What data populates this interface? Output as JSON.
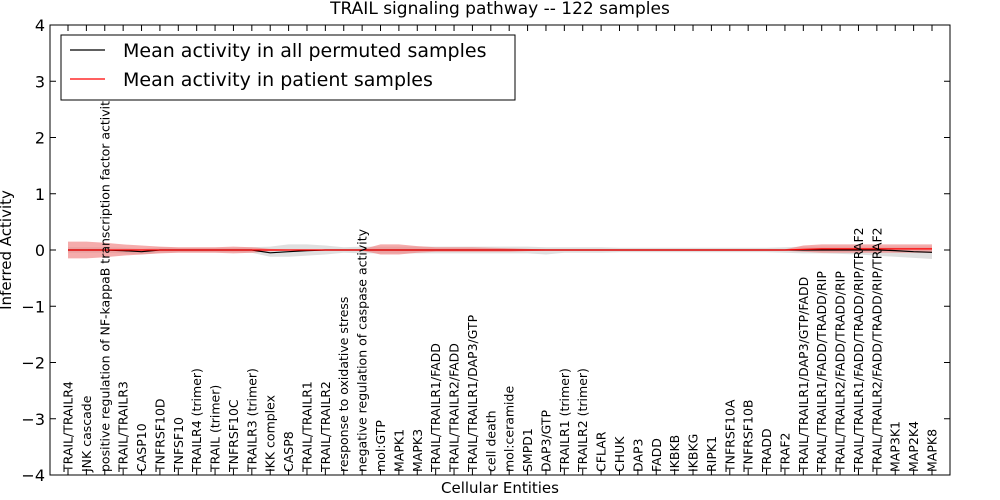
{
  "chart_data": {
    "type": "line",
    "title": "TRAIL signaling pathway -- 122 samples",
    "xlabel": "Cellular Entities",
    "ylabel": "Inferred Activity",
    "ylim": [
      -4,
      4
    ],
    "yticks": [
      "4",
      "3",
      "2",
      "1",
      "0",
      "−1",
      "−2",
      "−3",
      "−4"
    ],
    "grid": false,
    "legend_position": "top-left",
    "categories": [
      "TRAIL/TRAILR4",
      "JNK cascade",
      "positive regulation of NF-kappaB transcription factor activity",
      "TRAIL/TRAILR3",
      "CASP10",
      "TNFRSF10D",
      "TNFSF10",
      "TRAILR4 (trimer)",
      "TRAIL (trimer)",
      "TNFRSF10C",
      "TRAILR3 (trimer)",
      "IKK complex",
      "CASP8",
      "TRAIL/TRAILR1",
      "TRAIL/TRAILR2",
      "response to oxidative stress",
      "negative regulation of caspase activity",
      "mol:GTP",
      "MAPK1",
      "MAPK3",
      "TRAIL/TRAILR1/FADD",
      "TRAIL/TRAILR2/FADD",
      "TRAIL/TRAILR1/DAP3/GTP",
      "cell death",
      "mol:ceramide",
      "SMPD1",
      "DAP3/GTP",
      "TRAILR1 (trimer)",
      "TRAILR2 (trimer)",
      "CFLAR",
      "CHUK",
      "DAP3",
      "FADD",
      "IKBKB",
      "IKBKG",
      "RIPK1",
      "TNFRSF10A",
      "TNFRSF10B",
      "TRADD",
      "TRAF2",
      "TRAIL/TRAILR1/DAP3/GTP/FADD",
      "TRAIL/TRAILR1/FADD/TRADD/RIP",
      "TRAIL/TRAILR2/FADD/TRADD/RIP",
      "TRAIL/TRAILR1/FADD/TRADD/RIP/TRAF2",
      "TRAIL/TRAILR2/FADD/TRADD/RIP/TRAF2",
      "MAP3K1",
      "MAP2K4",
      "MAPK8"
    ],
    "series": [
      {
        "name": "Mean activity in all permuted samples",
        "color": "#000000",
        "band_color": "#bfbfbf",
        "values": [
          0,
          0,
          0,
          -0.01,
          -0.03,
          0,
          0,
          0,
          0,
          0,
          0,
          -0.05,
          -0.03,
          -0.01,
          0,
          0,
          0,
          0,
          0,
          0,
          0,
          0,
          0,
          0,
          0,
          0,
          0,
          0,
          0,
          0,
          0,
          0,
          0,
          0,
          0,
          0,
          0,
          0,
          0,
          0,
          0,
          0,
          0,
          0,
          0,
          -0.01,
          -0.03,
          -0.04
        ],
        "lower": [
          -0.05,
          -0.05,
          -0.05,
          -0.06,
          -0.08,
          -0.05,
          -0.04,
          -0.04,
          -0.04,
          -0.04,
          -0.05,
          -0.12,
          -0.12,
          -0.1,
          -0.08,
          -0.05,
          -0.06,
          -0.06,
          -0.06,
          -0.06,
          -0.06,
          -0.06,
          -0.06,
          -0.06,
          -0.06,
          -0.06,
          -0.08,
          -0.05,
          -0.05,
          -0.05,
          -0.04,
          -0.04,
          -0.04,
          -0.04,
          -0.04,
          -0.04,
          -0.04,
          -0.04,
          -0.04,
          -0.05,
          -0.06,
          -0.06,
          -0.07,
          -0.08,
          -0.1,
          -0.12,
          -0.14,
          -0.16
        ],
        "upper": [
          0.05,
          0.05,
          0.05,
          0.04,
          0.02,
          0.05,
          0.04,
          0.04,
          0.04,
          0.04,
          0.05,
          0.06,
          0.1,
          0.1,
          0.08,
          0.05,
          0.06,
          0.06,
          0.06,
          0.06,
          0.06,
          0.06,
          0.06,
          0.06,
          0.06,
          0.06,
          0.05,
          0.05,
          0.05,
          0.05,
          0.04,
          0.04,
          0.04,
          0.04,
          0.04,
          0.04,
          0.04,
          0.04,
          0.04,
          0.05,
          0.06,
          0.06,
          0.06,
          0.06,
          0.06,
          0.06,
          0.06,
          0.06
        ]
      },
      {
        "name": "Mean activity in patient samples",
        "color": "#ff0000",
        "band_color": "#f08080",
        "values": [
          0,
          0,
          0,
          0,
          0,
          0,
          0,
          0,
          0,
          0,
          0,
          0,
          0,
          0,
          0,
          0,
          0,
          0,
          0,
          0,
          0,
          0,
          0,
          0,
          0,
          0,
          0,
          0,
          0,
          0,
          0,
          0,
          0,
          0,
          0,
          0,
          0,
          0,
          0,
          0,
          0.01,
          0.02,
          0.02,
          0.02,
          0.02,
          0.02,
          0.02,
          0.02
        ],
        "lower": [
          -0.15,
          -0.15,
          -0.13,
          -0.1,
          -0.08,
          -0.06,
          -0.05,
          -0.05,
          -0.05,
          -0.06,
          -0.05,
          -0.02,
          -0.01,
          -0.01,
          -0.01,
          -0.01,
          -0.01,
          -0.08,
          -0.08,
          -0.05,
          -0.03,
          -0.03,
          -0.03,
          -0.03,
          -0.03,
          -0.02,
          -0.01,
          -0.01,
          -0.01,
          -0.01,
          -0.01,
          -0.01,
          -0.01,
          -0.01,
          -0.01,
          -0.01,
          -0.01,
          -0.01,
          -0.01,
          -0.01,
          -0.03,
          -0.05,
          -0.05,
          -0.05,
          -0.05,
          -0.05,
          -0.05,
          -0.05
        ],
        "upper": [
          0.15,
          0.15,
          0.13,
          0.1,
          0.08,
          0.06,
          0.05,
          0.05,
          0.05,
          0.06,
          0.05,
          0.02,
          0.01,
          0.01,
          0.01,
          0.01,
          0.01,
          0.1,
          0.1,
          0.07,
          0.05,
          0.05,
          0.05,
          0.04,
          0.03,
          0.02,
          0.01,
          0.01,
          0.01,
          0.01,
          0.01,
          0.01,
          0.01,
          0.01,
          0.01,
          0.01,
          0.01,
          0.01,
          0.01,
          0.01,
          0.08,
          0.1,
          0.1,
          0.1,
          0.1,
          0.1,
          0.1,
          0.1
        ]
      }
    ]
  }
}
